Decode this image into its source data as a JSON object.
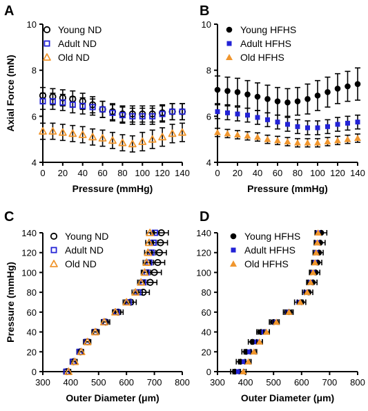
{
  "colors": {
    "young": "#000000",
    "adult": "#2323d6",
    "old": "#f0962e"
  },
  "panels": [
    {
      "letter": "A",
      "type": "force",
      "xlabel": "Pressure (mmHg)",
      "ylabel": "Axial Force (mN)",
      "xlim": [
        0,
        140
      ],
      "ylim": [
        4,
        10
      ],
      "xticks": [
        0,
        20,
        40,
        60,
        80,
        100,
        120,
        140
      ],
      "yticks": [
        4,
        6,
        8,
        10
      ],
      "legend": [
        {
          "label": "Young ND",
          "group": "young",
          "marker": "open-circle"
        },
        {
          "label": "Adult ND",
          "group": "adult",
          "marker": "open-square"
        },
        {
          "label": "Old ND",
          "group": "old",
          "marker": "open-triangle"
        }
      ]
    },
    {
      "letter": "B",
      "type": "force",
      "xlabel": "Pressure (mmHg)",
      "ylabel": "",
      "xlim": [
        0,
        140
      ],
      "ylim": [
        4,
        10
      ],
      "xticks": [
        0,
        20,
        40,
        60,
        80,
        100,
        120,
        140
      ],
      "yticks": [
        4,
        6,
        8,
        10
      ],
      "legend": [
        {
          "label": "Young HFHS",
          "group": "young",
          "marker": "filled-circle"
        },
        {
          "label": "Adult HFHS",
          "group": "adult",
          "marker": "filled-square"
        },
        {
          "label": "Old HFHS",
          "group": "old",
          "marker": "filled-triangle"
        }
      ]
    },
    {
      "letter": "C",
      "type": "diameter",
      "xlabel": "Outer Diameter (μm)",
      "ylabel": "Pressure (mmHg)",
      "xlim": [
        300,
        800
      ],
      "ylim": [
        0,
        140
      ],
      "xticks": [
        300,
        400,
        500,
        600,
        700,
        800
      ],
      "yticks": [
        0,
        20,
        40,
        60,
        80,
        100,
        120,
        140
      ],
      "legend": [
        {
          "label": "Young ND",
          "group": "young",
          "marker": "open-circle"
        },
        {
          "label": "Adult ND",
          "group": "adult",
          "marker": "open-square"
        },
        {
          "label": "Old ND",
          "group": "old",
          "marker": "open-triangle"
        }
      ]
    },
    {
      "letter": "D",
      "type": "diameter",
      "xlabel": "Outer Diameter (μm)",
      "ylabel": "",
      "xlim": [
        300,
        800
      ],
      "ylim": [
        0,
        140
      ],
      "xticks": [
        300,
        400,
        500,
        600,
        700,
        800
      ],
      "yticks": [
        0,
        20,
        40,
        60,
        80,
        100,
        120,
        140
      ],
      "legend": [
        {
          "label": "Young HFHS",
          "group": "young",
          "marker": "filled-circle"
        },
        {
          "label": "Adult HFHS",
          "group": "adult",
          "marker": "filled-square"
        },
        {
          "label": "Old HFHS",
          "group": "old",
          "marker": "filled-triangle"
        }
      ]
    }
  ],
  "chart_data": [
    {
      "type": "scatter",
      "panel": "A",
      "x": [
        0,
        10,
        20,
        30,
        40,
        50,
        60,
        70,
        80,
        90,
        100,
        110,
        120,
        130,
        140
      ],
      "series": [
        {
          "name": "Young ND",
          "y": [
            6.9,
            6.85,
            6.8,
            6.75,
            6.65,
            6.5,
            6.3,
            6.2,
            6.1,
            6.1,
            6.1,
            6.1,
            6.15,
            6.2,
            6.2
          ],
          "err": [
            0.35,
            0.35,
            0.35,
            0.35,
            0.35,
            0.35,
            0.35,
            0.35,
            0.35,
            0.35,
            0.35,
            0.35,
            0.35,
            0.35,
            0.35
          ]
        },
        {
          "name": "Adult ND",
          "y": [
            6.65,
            6.65,
            6.6,
            6.5,
            6.45,
            6.4,
            6.3,
            6.15,
            6.05,
            6.0,
            6.0,
            6.0,
            6.1,
            6.2,
            6.2
          ],
          "err": [
            0.35,
            0.35,
            0.35,
            0.35,
            0.35,
            0.35,
            0.35,
            0.35,
            0.35,
            0.35,
            0.35,
            0.35,
            0.35,
            0.35,
            0.35
          ]
        },
        {
          "name": "Old ND",
          "y": [
            5.35,
            5.35,
            5.3,
            5.25,
            5.2,
            5.1,
            5.05,
            4.95,
            4.85,
            4.8,
            4.9,
            5.0,
            5.1,
            5.25,
            5.3
          ],
          "err": [
            0.35,
            0.35,
            0.35,
            0.35,
            0.35,
            0.35,
            0.35,
            0.35,
            0.35,
            0.35,
            0.4,
            0.4,
            0.4,
            0.4,
            0.4
          ]
        }
      ]
    },
    {
      "type": "scatter",
      "panel": "B",
      "x": [
        0,
        10,
        20,
        30,
        40,
        50,
        60,
        70,
        80,
        90,
        100,
        110,
        120,
        130,
        140
      ],
      "series": [
        {
          "name": "Young HFHS",
          "y": [
            7.15,
            7.1,
            7.05,
            6.95,
            6.85,
            6.75,
            6.65,
            6.6,
            6.65,
            6.75,
            6.9,
            7.05,
            7.2,
            7.3,
            7.4
          ],
          "err": [
            0.6,
            0.6,
            0.6,
            0.6,
            0.6,
            0.6,
            0.6,
            0.6,
            0.6,
            0.65,
            0.65,
            0.65,
            0.65,
            0.65,
            0.7
          ]
        },
        {
          "name": "Adult HFHS",
          "y": [
            6.2,
            6.15,
            6.1,
            6.05,
            5.95,
            5.85,
            5.75,
            5.65,
            5.55,
            5.5,
            5.5,
            5.55,
            5.65,
            5.7,
            5.75
          ],
          "err": [
            0.3,
            0.3,
            0.3,
            0.3,
            0.3,
            0.3,
            0.3,
            0.3,
            0.3,
            0.3,
            0.3,
            0.3,
            0.3,
            0.3,
            0.3
          ]
        },
        {
          "name": "Old HFHS",
          "y": [
            5.3,
            5.25,
            5.2,
            5.15,
            5.1,
            5.0,
            4.95,
            4.9,
            4.85,
            4.85,
            4.85,
            4.9,
            4.95,
            5.0,
            5.05
          ],
          "err": [
            0.18,
            0.18,
            0.18,
            0.18,
            0.18,
            0.18,
            0.18,
            0.18,
            0.18,
            0.18,
            0.18,
            0.18,
            0.18,
            0.18,
            0.18
          ]
        }
      ]
    },
    {
      "type": "scatter",
      "panel": "C",
      "y": [
        0,
        10,
        20,
        30,
        40,
        50,
        60,
        70,
        80,
        90,
        100,
        110,
        120,
        130,
        140
      ],
      "series": [
        {
          "name": "Young ND",
          "x": [
            386,
            410,
            435,
            460,
            490,
            525,
            570,
            615,
            660,
            685,
            700,
            712,
            718,
            722,
            725
          ],
          "err": [
            10,
            10,
            10,
            12,
            12,
            15,
            18,
            20,
            22,
            24,
            25,
            25,
            25,
            25,
            25
          ]
        },
        {
          "name": "Adult ND",
          "x": [
            385,
            408,
            432,
            458,
            488,
            522,
            565,
            608,
            642,
            660,
            672,
            682,
            690,
            697,
            702
          ],
          "err": [
            10,
            10,
            10,
            12,
            12,
            12,
            14,
            15,
            15,
            15,
            15,
            15,
            15,
            15,
            15
          ]
        },
        {
          "name": "Old ND",
          "x": [
            392,
            415,
            438,
            460,
            488,
            520,
            560,
            600,
            632,
            652,
            665,
            672,
            677,
            681,
            684
          ],
          "err": [
            8,
            8,
            8,
            8,
            8,
            10,
            10,
            12,
            12,
            12,
            12,
            12,
            12,
            12,
            12
          ]
        }
      ]
    },
    {
      "type": "scatter",
      "panel": "D",
      "y": [
        0,
        10,
        20,
        30,
        40,
        50,
        60,
        70,
        80,
        90,
        100,
        110,
        120,
        130,
        140
      ],
      "series": [
        {
          "name": "Young HFHS",
          "x": [
            362,
            382,
            402,
            425,
            455,
            500,
            555,
            600,
            625,
            640,
            650,
            657,
            662,
            666,
            670
          ],
          "err": [
            15,
            15,
            15,
            15,
            15,
            15,
            15,
            15,
            15,
            15,
            15,
            15,
            15,
            18,
            20
          ]
        },
        {
          "name": "Adult HFHS",
          "x": [
            375,
            395,
            415,
            440,
            465,
            505,
            550,
            590,
            615,
            630,
            640,
            648,
            653,
            657,
            660
          ],
          "err": [
            20,
            20,
            20,
            20,
            20,
            15,
            15,
            15,
            12,
            12,
            12,
            12,
            12,
            12,
            12
          ]
        },
        {
          "name": "Old HFHS",
          "x": [
            392,
            410,
            430,
            450,
            475,
            510,
            555,
            595,
            620,
            632,
            641,
            648,
            652,
            656,
            659
          ],
          "err": [
            10,
            10,
            10,
            10,
            10,
            10,
            10,
            10,
            10,
            10,
            10,
            10,
            10,
            10,
            10
          ]
        }
      ]
    }
  ]
}
